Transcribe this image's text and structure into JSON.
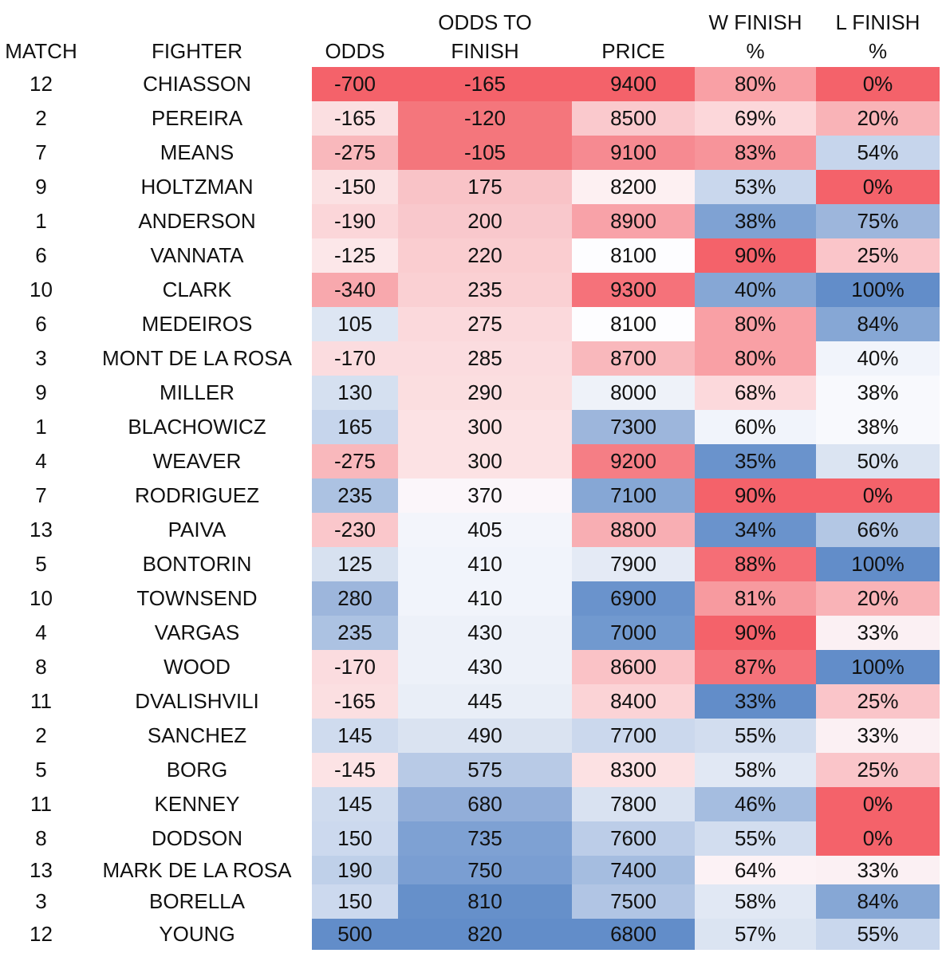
{
  "headers": {
    "match": "MATCH",
    "fighter": "FIGHTER",
    "odds": "ODDS",
    "odds_to_finish_line1": "ODDS TO",
    "odds_to_finish_line2": "FINISH",
    "price": "PRICE",
    "w_finish_line1": "W FINISH",
    "w_finish_line2": "%",
    "l_finish_line1": "L FINISH",
    "l_finish_line2": "%"
  },
  "colors": {
    "red_strong": "#f4626a",
    "red_med": "#f68a91",
    "red_light": "#f9b3b7",
    "red_pale": "#fbd6d8",
    "red_faint": "#fdeaec",
    "white": "#fdfdff",
    "blue_faint": "#eef2f9",
    "blue_pale": "#dae3f1",
    "blue_light": "#c2d2ea",
    "blue_med": "#9db6dc",
    "blue_strong": "#628dc9"
  },
  "rows": [
    {
      "match": "12",
      "fighter": "CHIASSON",
      "odds": "-700",
      "odds_to_finish": "-165",
      "price": "9400",
      "w_finish": "80%",
      "l_finish": "0%",
      "c_odds": "#f4626a",
      "c_otf": "#f4626a",
      "c_price": "#f4626a",
      "c_wf": "#f9a0a5",
      "c_lf": "#f4626a"
    },
    {
      "match": "2",
      "fighter": "PEREIRA",
      "odds": "-165",
      "odds_to_finish": "-120",
      "price": "8500",
      "w_finish": "69%",
      "l_finish": "20%",
      "c_odds": "#fbdfe1",
      "c_otf": "#f4767c",
      "c_price": "#fac9cd",
      "c_wf": "#fcd7da",
      "c_lf": "#f9b3b7"
    },
    {
      "match": "7",
      "fighter": "MEANS",
      "odds": "-275",
      "odds_to_finish": "-105",
      "price": "9100",
      "w_finish": "83%",
      "l_finish": "54%",
      "c_odds": "#f9b8bc",
      "c_otf": "#f4767c",
      "c_price": "#f68a91",
      "c_wf": "#f7949a",
      "c_lf": "#c6d5ec"
    },
    {
      "match": "9",
      "fighter": "HOLTZMAN",
      "odds": "-150",
      "odds_to_finish": "175",
      "price": "8200",
      "w_finish": "53%",
      "l_finish": "0%",
      "c_odds": "#fbe1e3",
      "c_otf": "#f9c3c7",
      "c_price": "#fdf0f2",
      "c_wf": "#c9d7ed",
      "c_lf": "#f4626a"
    },
    {
      "match": "1",
      "fighter": "ANDERSON",
      "odds": "-190",
      "odds_to_finish": "200",
      "price": "8900",
      "w_finish": "38%",
      "l_finish": "75%",
      "c_odds": "#fbd6d9",
      "c_otf": "#f9c8cc",
      "c_price": "#f8a2a8",
      "c_wf": "#7fa2d3",
      "c_lf": "#9db6dc"
    },
    {
      "match": "6",
      "fighter": "VANNATA",
      "odds": "-125",
      "odds_to_finish": "220",
      "price": "8100",
      "w_finish": "90%",
      "l_finish": "25%",
      "c_odds": "#fce7e9",
      "c_otf": "#facdd0",
      "c_price": "#fdfdff",
      "c_wf": "#f4626a",
      "c_lf": "#fac5c9"
    },
    {
      "match": "10",
      "fighter": "CLARK",
      "odds": "-340",
      "odds_to_finish": "235",
      "price": "9300",
      "w_finish": "40%",
      "l_finish": "100%",
      "c_odds": "#f8a8ad",
      "c_otf": "#fad0d3",
      "c_price": "#f5727a",
      "c_wf": "#86a7d5",
      "c_lf": "#628dc9"
    },
    {
      "match": "6",
      "fighter": "MEDEIROS",
      "odds": "105",
      "odds_to_finish": "275",
      "price": "8100",
      "w_finish": "80%",
      "l_finish": "84%",
      "c_odds": "#dde6f3",
      "c_otf": "#fbd9dc",
      "c_price": "#fdfdff",
      "c_wf": "#f9a0a5",
      "c_lf": "#86a7d5"
    },
    {
      "match": "3",
      "fighter": "MONT DE LA ROSA",
      "odds": "-170",
      "odds_to_finish": "285",
      "price": "8700",
      "w_finish": "80%",
      "l_finish": "40%",
      "c_odds": "#fbdcdf",
      "c_otf": "#fbdcdf",
      "c_price": "#f9b8bc",
      "c_wf": "#f9a0a5",
      "c_lf": "#f1f4fb"
    },
    {
      "match": "9",
      "fighter": "MILLER",
      "odds": "130",
      "odds_to_finish": "290",
      "price": "8000",
      "w_finish": "68%",
      "l_finish": "38%",
      "c_odds": "#d5e0f0",
      "c_otf": "#fbdee0",
      "c_price": "#eef2f9",
      "c_wf": "#fcd9dc",
      "c_lf": "#f8f9fd"
    },
    {
      "match": "1",
      "fighter": "BLACHOWICZ",
      "odds": "165",
      "odds_to_finish": "300",
      "price": "7300",
      "w_finish": "60%",
      "l_finish": "38%",
      "c_odds": "#c6d5ec",
      "c_otf": "#fce2e4",
      "c_price": "#9db6dc",
      "c_wf": "#f1f4fb",
      "c_lf": "#f8f9fd"
    },
    {
      "match": "4",
      "fighter": "WEAVER",
      "odds": "-275",
      "odds_to_finish": "300",
      "price": "9200",
      "w_finish": "35%",
      "l_finish": "50%",
      "c_odds": "#f9b8bc",
      "c_otf": "#fce2e4",
      "c_price": "#f57e85",
      "c_wf": "#6a93cc",
      "c_lf": "#dbe4f2"
    },
    {
      "match": "7",
      "fighter": "RODRIGUEZ",
      "odds": "235",
      "odds_to_finish": "370",
      "price": "7100",
      "w_finish": "90%",
      "l_finish": "0%",
      "c_odds": "#acc2e2",
      "c_otf": "#fbf6fa",
      "c_price": "#86a7d5",
      "c_wf": "#f4626a",
      "c_lf": "#f4626a"
    },
    {
      "match": "13",
      "fighter": "PAIVA",
      "odds": "-230",
      "odds_to_finish": "405",
      "price": "8800",
      "w_finish": "34%",
      "l_finish": "66%",
      "c_odds": "#fac7cb",
      "c_otf": "#f3f5fb",
      "c_price": "#f8aeb3",
      "c_wf": "#6a93cc",
      "c_lf": "#b3c7e4"
    },
    {
      "match": "5",
      "fighter": "BONTORIN",
      "odds": "125",
      "odds_to_finish": "410",
      "price": "7900",
      "w_finish": "88%",
      "l_finish": "100%",
      "c_odds": "#d7e1f0",
      "c_otf": "#f1f4fb",
      "c_price": "#e4eaf5",
      "c_wf": "#f56e76",
      "c_lf": "#628dc9"
    },
    {
      "match": "10",
      "fighter": "TOWNSEND",
      "odds": "280",
      "odds_to_finish": "410",
      "price": "6900",
      "w_finish": "81%",
      "l_finish": "20%",
      "c_odds": "#9db6dc",
      "c_otf": "#f1f4fb",
      "c_price": "#6a93cc",
      "c_wf": "#f79a9f",
      "c_lf": "#f9b3b7"
    },
    {
      "match": "4",
      "fighter": "VARGAS",
      "odds": "235",
      "odds_to_finish": "430",
      "price": "7000",
      "w_finish": "90%",
      "l_finish": "33%",
      "c_odds": "#acc2e2",
      "c_otf": "#edf1f9",
      "c_price": "#7199cf",
      "c_wf": "#f4626a",
      "c_lf": "#fbf0f3"
    },
    {
      "match": "8",
      "fighter": "WOOD",
      "odds": "-170",
      "odds_to_finish": "430",
      "price": "8600",
      "w_finish": "87%",
      "l_finish": "100%",
      "c_odds": "#fbdcdf",
      "c_otf": "#edf1f9",
      "c_price": "#fac2c6",
      "c_wf": "#f5727a",
      "c_lf": "#628dc9"
    },
    {
      "match": "11",
      "fighter": "DVALISHVILI",
      "odds": "-165",
      "odds_to_finish": "445",
      "price": "8400",
      "w_finish": "33%",
      "l_finish": "25%",
      "c_odds": "#fbdfe1",
      "c_otf": "#e9eef7",
      "c_price": "#fbd3d6",
      "c_wf": "#628dc9",
      "c_lf": "#fac5c9"
    },
    {
      "match": "2",
      "fighter": "SANCHEZ",
      "odds": "145",
      "odds_to_finish": "490",
      "price": "7700",
      "w_finish": "55%",
      "l_finish": "33%",
      "c_odds": "#cfdbee",
      "c_otf": "#dae3f1",
      "c_price": "#cbd8ed",
      "c_wf": "#d2ddef",
      "c_lf": "#fbf0f3"
    },
    {
      "match": "5",
      "fighter": "BORG",
      "odds": "-145",
      "odds_to_finish": "575",
      "price": "8300",
      "w_finish": "58%",
      "l_finish": "25%",
      "c_odds": "#fce3e5",
      "c_otf": "#b8cae6",
      "c_price": "#fce1e3",
      "c_wf": "#e1e8f4",
      "c_lf": "#fac5c9"
    },
    {
      "match": "11",
      "fighter": "KENNEY",
      "odds": "145",
      "odds_to_finish": "680",
      "price": "7800",
      "w_finish": "46%",
      "l_finish": "0%",
      "c_odds": "#cfdbee",
      "c_otf": "#92aed9",
      "c_price": "#d9e2f1",
      "c_wf": "#a5bde0",
      "c_lf": "#f4626a"
    },
    {
      "match": "8",
      "fighter": "DODSON",
      "odds": "150",
      "odds_to_finish": "735",
      "price": "7600",
      "w_finish": "55%",
      "l_finish": "0%",
      "c_odds": "#ccd9ee",
      "c_otf": "#7ea1d3",
      "c_price": "#bccde8",
      "c_wf": "#d2ddef",
      "c_lf": "#f4626a"
    },
    {
      "match": "13",
      "fighter": "MARK DE LA ROSA",
      "odds": "190",
      "odds_to_finish": "750",
      "price": "7400",
      "w_finish": "64%",
      "l_finish": "33%",
      "c_odds": "#bfd0e9",
      "c_otf": "#7a9ed2",
      "c_price": "#a5bde0",
      "c_wf": "#fcf2f5",
      "c_lf": "#fbf0f3"
    },
    {
      "match": "3",
      "fighter": "BORELLA",
      "odds": "150",
      "odds_to_finish": "810",
      "price": "7500",
      "w_finish": "58%",
      "l_finish": "84%",
      "c_odds": "#ccd9ee",
      "c_otf": "#6690ca",
      "c_price": "#b1c5e4",
      "c_wf": "#e1e8f4",
      "c_lf": "#86a7d5"
    },
    {
      "match": "12",
      "fighter": "YOUNG",
      "odds": "500",
      "odds_to_finish": "820",
      "price": "6800",
      "w_finish": "57%",
      "l_finish": "55%",
      "c_odds": "#628dc9",
      "c_otf": "#628dc9",
      "c_price": "#628dc9",
      "c_wf": "#dbe4f2",
      "c_lf": "#c9d7ed"
    }
  ]
}
